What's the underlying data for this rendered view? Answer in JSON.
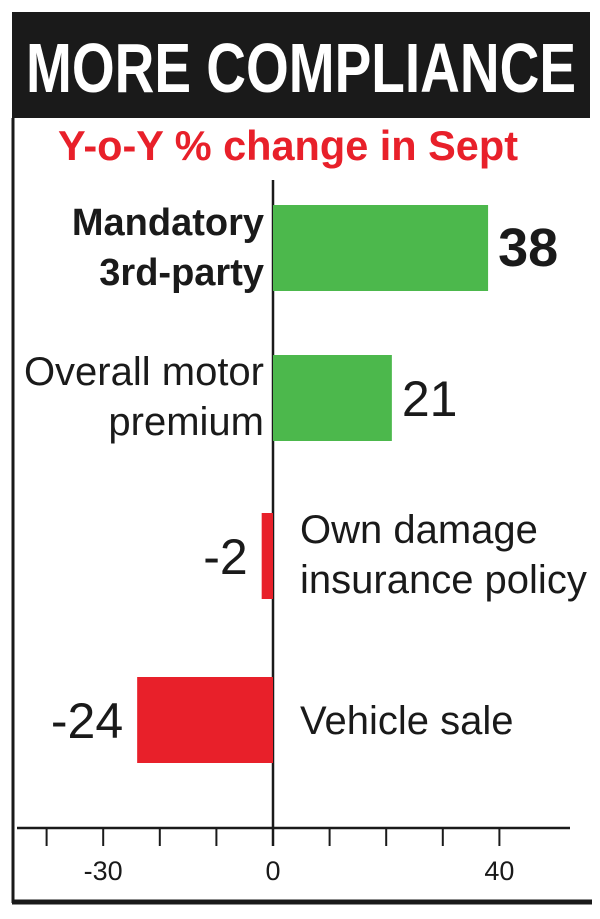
{
  "chart_data": {
    "type": "bar",
    "orientation": "horizontal",
    "title": "MORE COMPLIANCE",
    "subtitle": "Y-o-Y % change in Sept",
    "categories": [
      [
        "Mandatory",
        "3rd-party"
      ],
      [
        "Overall motor",
        "premium"
      ],
      [
        "Own damage",
        "insurance policy"
      ],
      [
        "Vehicle sale"
      ]
    ],
    "values": [
      38,
      21,
      -2,
      -24
    ],
    "value_labels": [
      "38",
      "21",
      "-2",
      "-24"
    ],
    "highlighted_category": 0,
    "xlim": [
      -40,
      50
    ],
    "x_ticks": [
      -30,
      0,
      40
    ],
    "x_tick_labels": [
      "-30",
      "0",
      "40"
    ],
    "grid": false,
    "colors": {
      "positive": "#4cb84c",
      "negative": "#e8202a",
      "title_bg": "#1a1a1a",
      "subtitle": "#e8202a"
    }
  }
}
